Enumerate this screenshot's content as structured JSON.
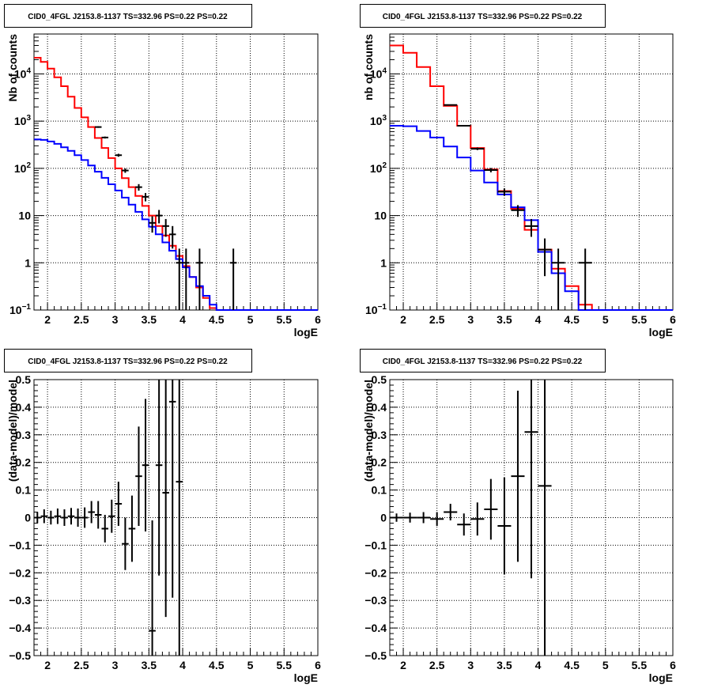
{
  "chart_data": [
    {
      "type": "histogram",
      "title": "CID0_4FGL J2153.8-1137 TS=332.96 PS=0.22 PS=0.22",
      "xlabel": "logE",
      "ylabel": "Nb of counts",
      "xlim": [
        1.8,
        6.0
      ],
      "ylim": [
        0.1,
        70000
      ],
      "yscale": "log",
      "grid": true,
      "x_ticks": [
        "2",
        "2.5",
        "3",
        "3.5",
        "4",
        "4.5",
        "5",
        "5.5",
        "6"
      ],
      "y_ticks": [
        "10^-1",
        "1",
        "10",
        "10^2",
        "10^3",
        "10^4"
      ],
      "bin_edges": [
        1.8,
        1.9,
        2.0,
        2.1,
        2.2,
        2.3,
        2.4,
        2.5,
        2.6,
        2.7,
        2.8,
        2.9,
        3.0,
        3.1,
        3.2,
        3.3,
        3.4,
        3.5,
        3.6,
        3.7,
        3.8,
        3.9,
        4.0,
        4.1,
        4.2,
        4.3,
        4.4,
        4.5,
        4.6,
        4.7,
        4.8,
        4.9,
        5.0,
        5.1,
        5.2,
        5.3,
        5.4,
        5.5,
        5.6,
        5.7,
        5.8,
        5.9,
        6.0
      ],
      "series": [
        {
          "color": "#ff0000",
          "values": [
            22000,
            18000,
            13000,
            8500,
            5500,
            3300,
            1900,
            1200,
            750,
            440,
            270,
            165,
            100,
            62,
            40,
            26,
            16,
            10,
            6,
            3.8,
            2.3,
            1.4,
            0.85,
            0.5,
            0.3,
            0.18,
            0.11,
            0.1,
            0.1,
            0.1,
            0.1,
            0.1,
            0.1,
            0.1,
            0.1,
            0.1,
            0.1,
            0.1,
            0.1,
            0.1,
            0.1,
            0.1
          ]
        },
        {
          "color": "#0000ff",
          "values": [
            410,
            400,
            370,
            330,
            280,
            235,
            190,
            150,
            115,
            85,
            63,
            46,
            34,
            24,
            17,
            12,
            8.3,
            5.8,
            4.0,
            2.7,
            1.8,
            1.2,
            0.8,
            0.5,
            0.32,
            0.2,
            0.13,
            0.1,
            0.1,
            0.1,
            0.1,
            0.1,
            0.1,
            0.1,
            0.1,
            0.1,
            0.1,
            0.1,
            0.1,
            0.1,
            0.1,
            0.1
          ]
        }
      ],
      "data_points": [
        {
          "x": 2.75,
          "y": 750,
          "hw": 0.05
        },
        {
          "x": 2.85,
          "y": 450,
          "hw": 0.05
        },
        {
          "x": 3.05,
          "y": 190,
          "hw": 0.05
        },
        {
          "x": 3.15,
          "y": 90,
          "hw": 0.05
        },
        {
          "x": 3.35,
          "y": 40,
          "hw": 0.05
        },
        {
          "x": 3.45,
          "y": 25,
          "hw": 0.05
        },
        {
          "x": 3.55,
          "y": 7,
          "hw": 0.05
        },
        {
          "x": 3.65,
          "y": 10,
          "hw": 0.05
        },
        {
          "x": 3.75,
          "y": 6,
          "hw": 0.05
        },
        {
          "x": 3.85,
          "y": 4,
          "hw": 0.05
        },
        {
          "x": 3.95,
          "y": 1,
          "hw": 0.05
        },
        {
          "x": 4.05,
          "y": 1,
          "hw": 0.05
        },
        {
          "x": 4.25,
          "y": 1,
          "hw": 0.05
        },
        {
          "x": 4.75,
          "y": 1,
          "hw": 0.05
        }
      ]
    },
    {
      "type": "histogram",
      "title": "CID0_4FGL J2153.8-1137 TS=332.96 PS=0.22 PS=0.22",
      "xlabel": "logE",
      "ylabel": "nb of counts",
      "xlim": [
        1.8,
        6.0
      ],
      "ylim": [
        0.1,
        70000
      ],
      "yscale": "log",
      "grid": true,
      "x_ticks": [
        "2",
        "2.5",
        "3",
        "3.5",
        "4",
        "4.5",
        "5",
        "5.5",
        "6"
      ],
      "y_ticks": [
        "10^-1",
        "1",
        "10",
        "10^2",
        "10^3",
        "10^4"
      ],
      "bin_edges": [
        1.8,
        2.0,
        2.2,
        2.4,
        2.6,
        2.8,
        3.0,
        3.2,
        3.4,
        3.6,
        3.8,
        4.0,
        4.2,
        4.4,
        4.6,
        4.8,
        5.0,
        5.2,
        5.4,
        5.6,
        5.8,
        6.0
      ],
      "series": [
        {
          "color": "#ff0000",
          "values": [
            40000,
            28000,
            14000,
            5500,
            2100,
            800,
            270,
            95,
            33,
            14,
            5,
            1.9,
            0.75,
            0.32,
            0.13,
            0.1,
            0.1,
            0.1,
            0.1,
            0.1,
            0.1
          ]
        },
        {
          "color": "#0000ff",
          "values": [
            800,
            780,
            620,
            450,
            290,
            170,
            90,
            50,
            28,
            15,
            8,
            1.7,
            0.6,
            0.25,
            0.1,
            0.1,
            0.1,
            0.1,
            0.1,
            0.1,
            0.1
          ]
        }
      ],
      "data_points": [
        {
          "x": 2.7,
          "y": 2200,
          "hw": 0.1
        },
        {
          "x": 2.9,
          "y": 800,
          "hw": 0.1
        },
        {
          "x": 3.1,
          "y": 260,
          "hw": 0.1
        },
        {
          "x": 3.3,
          "y": 92,
          "hw": 0.1
        },
        {
          "x": 3.5,
          "y": 32,
          "hw": 0.1
        },
        {
          "x": 3.7,
          "y": 13,
          "hw": 0.1
        },
        {
          "x": 3.9,
          "y": 6,
          "hw": 0.1
        },
        {
          "x": 4.1,
          "y": 1.9,
          "hw": 0.1
        },
        {
          "x": 4.3,
          "y": 1,
          "hw": 0.1
        },
        {
          "x": 4.7,
          "y": 1,
          "hw": 0.1
        }
      ]
    },
    {
      "type": "scatter",
      "title": "CID0_4FGL J2153.8-1137 TS=332.96 PS=0.22 PS=0.22",
      "xlabel": "logE",
      "ylabel": "(data-model)/model",
      "xlim": [
        1.8,
        6.0
      ],
      "ylim": [
        -0.5,
        0.5
      ],
      "grid": true,
      "x_ticks": [
        "2",
        "2.5",
        "3",
        "3.5",
        "4",
        "4.5",
        "5",
        "5.5",
        "6"
      ],
      "y_ticks": [
        "-0.5",
        "-0.4",
        "-0.3",
        "-0.2",
        "-0.1",
        "0",
        "0.1",
        "0.2",
        "0.3",
        "0.4",
        "0.5"
      ],
      "data_points": [
        {
          "x": 1.85,
          "y": 0.0,
          "hw": 0.05,
          "err": 0.02
        },
        {
          "x": 1.95,
          "y": 0.005,
          "hw": 0.05,
          "err": 0.025
        },
        {
          "x": 2.05,
          "y": 0.0,
          "hw": 0.05,
          "err": 0.025
        },
        {
          "x": 2.15,
          "y": 0.005,
          "hw": 0.05,
          "err": 0.028
        },
        {
          "x": 2.25,
          "y": 0.0,
          "hw": 0.05,
          "err": 0.03
        },
        {
          "x": 2.35,
          "y": 0.005,
          "hw": 0.05,
          "err": 0.03
        },
        {
          "x": 2.45,
          "y": 0.0,
          "hw": 0.05,
          "err": 0.033
        },
        {
          "x": 2.55,
          "y": 0.0,
          "hw": 0.05,
          "err": 0.037
        },
        {
          "x": 2.65,
          "y": 0.02,
          "hw": 0.05,
          "err": 0.04
        },
        {
          "x": 2.75,
          "y": 0.01,
          "hw": 0.05,
          "err": 0.05
        },
        {
          "x": 2.85,
          "y": -0.04,
          "hw": 0.05,
          "err": 0.05
        },
        {
          "x": 2.95,
          "y": 0.005,
          "hw": 0.05,
          "err": 0.06
        },
        {
          "x": 3.05,
          "y": 0.05,
          "hw": 0.05,
          "err": 0.08
        },
        {
          "x": 3.15,
          "y": -0.095,
          "hw": 0.05,
          "err": 0.095
        },
        {
          "x": 3.25,
          "y": -0.04,
          "hw": 0.05,
          "err": 0.12
        },
        {
          "x": 3.35,
          "y": 0.15,
          "hw": 0.05,
          "err": 0.18
        },
        {
          "x": 3.45,
          "y": 0.19,
          "hw": 0.05,
          "err": 0.24
        },
        {
          "x": 3.55,
          "y": -0.41,
          "hw": 0.05,
          "err": 0.4
        },
        {
          "x": 3.65,
          "y": 0.19,
          "hw": 0.05,
          "err": 0.4
        },
        {
          "x": 3.75,
          "y": 0.09,
          "hw": 0.05,
          "err": 0.45
        },
        {
          "x": 3.85,
          "y": 0.42,
          "hw": 0.05,
          "err": 0.71
        },
        {
          "x": 3.95,
          "y": 0.13,
          "hw": 0.05,
          "err": 0.9
        }
      ]
    },
    {
      "type": "scatter",
      "title": "CID0_4FGL J2153.8-1137 TS=332.96 PS=0.22 PS=0.22",
      "xlabel": "logE",
      "ylabel": "(data-model)/model",
      "xlim": [
        1.8,
        6.0
      ],
      "ylim": [
        -0.5,
        0.5
      ],
      "grid": true,
      "x_ticks": [
        "2",
        "2.5",
        "3",
        "3.5",
        "4",
        "4.5",
        "5",
        "5.5",
        "6"
      ],
      "y_ticks": [
        "-0.5",
        "-0.4",
        "-0.3",
        "-0.2",
        "-0.1",
        "0",
        "0.1",
        "0.2",
        "0.3",
        "0.4",
        "0.5"
      ],
      "data_points": [
        {
          "x": 1.9,
          "y": 0.0,
          "hw": 0.1,
          "err": 0.015
        },
        {
          "x": 2.1,
          "y": 0.0,
          "hw": 0.1,
          "err": 0.018
        },
        {
          "x": 2.3,
          "y": 0.0,
          "hw": 0.1,
          "err": 0.02
        },
        {
          "x": 2.5,
          "y": -0.005,
          "hw": 0.1,
          "err": 0.025
        },
        {
          "x": 2.7,
          "y": 0.02,
          "hw": 0.1,
          "err": 0.03
        },
        {
          "x": 2.9,
          "y": -0.025,
          "hw": 0.1,
          "err": 0.04
        },
        {
          "x": 3.1,
          "y": -0.005,
          "hw": 0.1,
          "err": 0.06
        },
        {
          "x": 3.3,
          "y": 0.03,
          "hw": 0.1,
          "err": 0.11
        },
        {
          "x": 3.5,
          "y": -0.03,
          "hw": 0.1,
          "err": 0.175
        },
        {
          "x": 3.7,
          "y": 0.15,
          "hw": 0.1,
          "err": 0.31
        },
        {
          "x": 3.9,
          "y": 0.31,
          "hw": 0.1,
          "err": 0.53
        },
        {
          "x": 4.1,
          "y": 0.115,
          "hw": 0.1,
          "err": 0.9
        }
      ]
    }
  ]
}
